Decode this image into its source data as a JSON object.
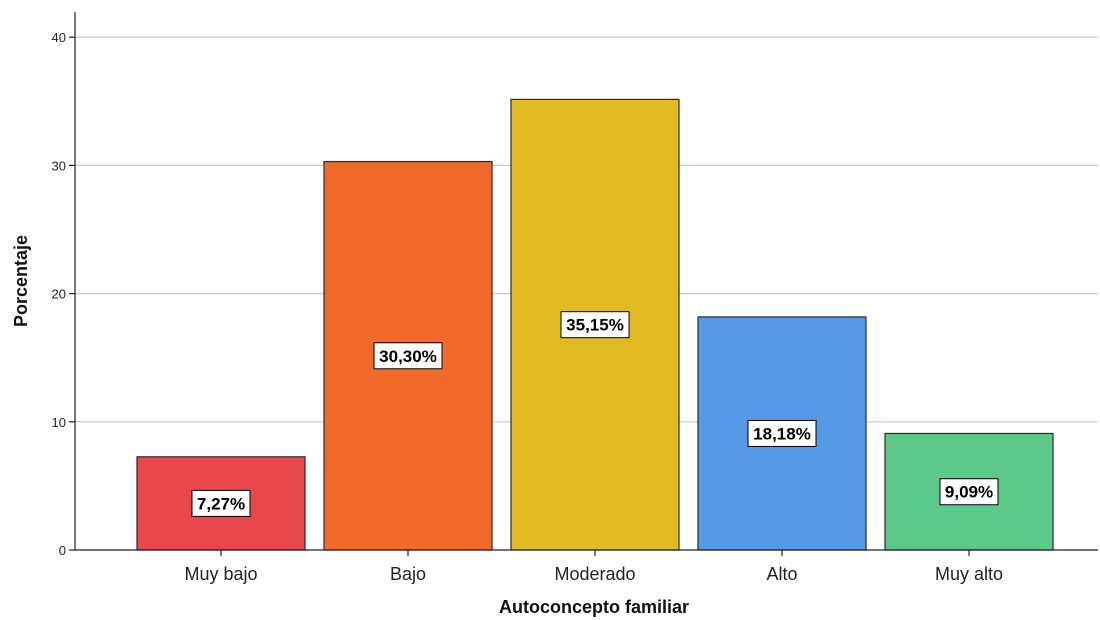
{
  "chart_data": {
    "type": "bar",
    "categories": [
      "Muy bajo",
      "Bajo",
      "Moderado",
      "Alto",
      "Muy alto"
    ],
    "values": [
      7.27,
      30.3,
      35.15,
      18.18,
      9.09
    ],
    "data_labels": [
      "7,27%",
      "30,30%",
      "35,15%",
      "18,18%",
      "9,09%"
    ],
    "colors": [
      "#e8474b",
      "#f2692c",
      "#e0ba22",
      "#5598e6",
      "#5cc889"
    ],
    "title": "",
    "xlabel": "Autoconcepto familiar",
    "ylabel": "Porcentaje",
    "ylim": [
      0,
      42
    ],
    "yticks": [
      0,
      10,
      20,
      30,
      40
    ],
    "ytick_labels": [
      "0",
      "10",
      "20",
      "30",
      "40"
    ],
    "grid": true,
    "legend": "none"
  }
}
